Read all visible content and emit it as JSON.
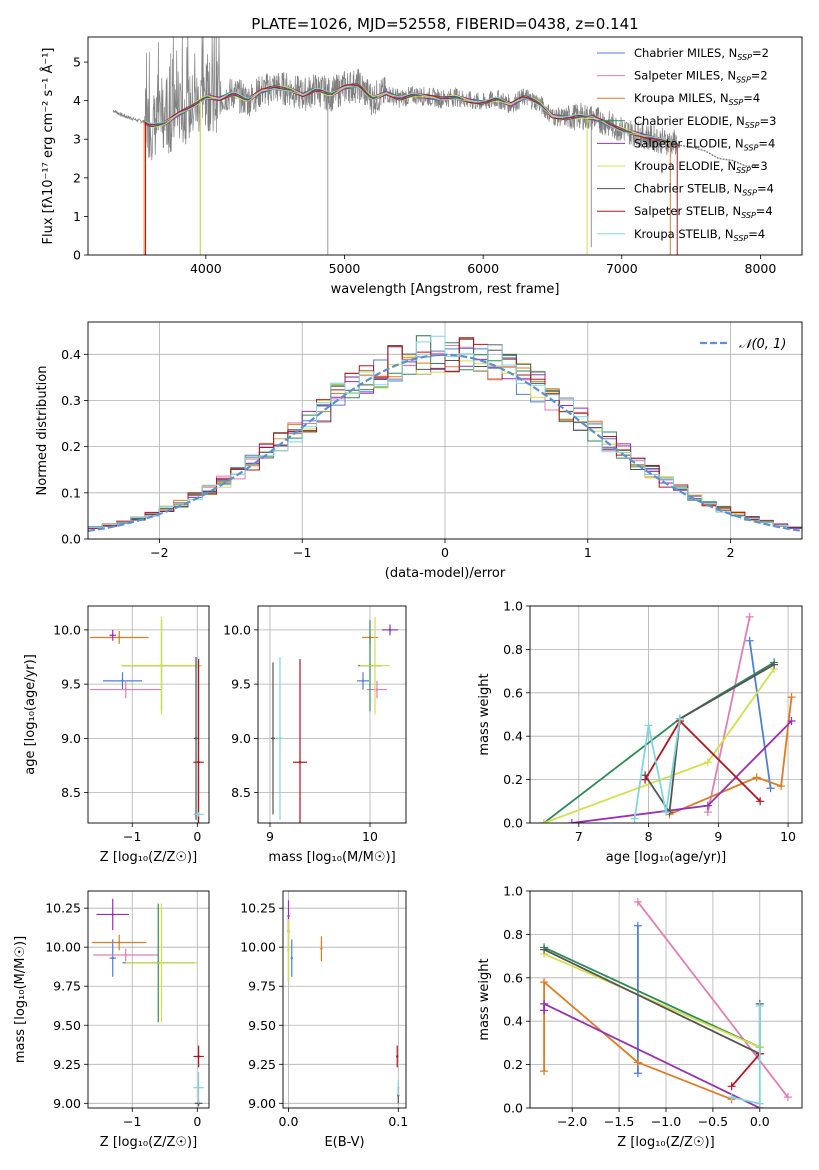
{
  "title": "PLATE=1026, MJD=52558, FIBERID=0438, z=0.141",
  "model_colors": {
    "Chabrier MILES": "#4f7fd6",
    "Salpeter MILES": "#e07fb5",
    "Kroupa MILES": "#e07b20",
    "Chabrier ELODIE": "#2e8b57",
    "Salpeter ELODIE": "#9a2fb5",
    "Kroupa ELODIE": "#d4e04a",
    "Chabrier STELIB": "#555555",
    "Salpeter STELIB": "#b5151f",
    "Kroupa STELIB": "#7fd7dd"
  },
  "legend_spectrum": [
    {
      "label": "Chabrier MILES, N",
      "sub": "SSP",
      "tail": "=2",
      "color": "#4f7fd6"
    },
    {
      "label": "Salpeter MILES, N",
      "sub": "SSP",
      "tail": "=2",
      "color": "#e07fb5"
    },
    {
      "label": "Kroupa MILES, N",
      "sub": "SSP",
      "tail": "=4",
      "color": "#e07b20"
    },
    {
      "label": "Chabrier ELODIE, N",
      "sub": "SSP",
      "tail": "=3",
      "color": "#2e8b57"
    },
    {
      "label": "Salpeter ELODIE, N",
      "sub": "SSP",
      "tail": "=4",
      "color": "#9a2fb5"
    },
    {
      "label": "Kroupa ELODIE, N",
      "sub": "SSP",
      "tail": "=3",
      "color": "#d4e04a"
    },
    {
      "label": "Chabrier STELIB, N",
      "sub": "SSP",
      "tail": "=4",
      "color": "#555555"
    },
    {
      "label": "Salpeter STELIB, N",
      "sub": "SSP",
      "tail": "=4",
      "color": "#b5151f"
    },
    {
      "label": "Kroupa STELIB, N",
      "sub": "SSP",
      "tail": "=4",
      "color": "#7fd7dd"
    }
  ],
  "legend_hist": {
    "label": "𝒩(0, 1)",
    "color": "#5b8fd6"
  },
  "chart_data": [
    {
      "id": "spectrum",
      "type": "line",
      "xlabel": "wavelength [Angstrom, rest frame]",
      "ylabel": "Flux [fλ10⁻¹⁷ erg cm⁻² s⁻¹ Å⁻¹]",
      "xlim": [
        3150,
        8300
      ],
      "ylim": [
        0,
        5.65
      ],
      "xticks": [
        4000,
        5000,
        6000,
        7000,
        8000
      ],
      "yticks": [
        0,
        1,
        2,
        3,
        4,
        5
      ],
      "grid": false,
      "legend": "upper right",
      "continuum": [
        [
          3330,
          3.75
        ],
        [
          3400,
          3.62
        ],
        [
          3500,
          3.5
        ],
        [
          3560,
          3.45
        ],
        [
          3600,
          3.35
        ],
        [
          3700,
          3.4
        ],
        [
          3800,
          3.65
        ],
        [
          3900,
          3.85
        ],
        [
          4000,
          4.1
        ],
        [
          4100,
          4.05
        ],
        [
          4200,
          4.2
        ],
        [
          4300,
          4.0
        ],
        [
          4400,
          4.25
        ],
        [
          4500,
          4.35
        ],
        [
          4600,
          4.3
        ],
        [
          4700,
          4.15
        ],
        [
          4800,
          4.3
        ],
        [
          4900,
          4.15
        ],
        [
          5000,
          4.35
        ],
        [
          5100,
          4.4
        ],
        [
          5200,
          4.05
        ],
        [
          5300,
          4.2
        ],
        [
          5400,
          4.05
        ],
        [
          5500,
          4.15
        ],
        [
          5600,
          4.1
        ],
        [
          5700,
          4.05
        ],
        [
          5800,
          4.1
        ],
        [
          5900,
          4.0
        ],
        [
          6000,
          3.95
        ],
        [
          6100,
          4.05
        ],
        [
          6200,
          3.9
        ],
        [
          6300,
          4.1
        ],
        [
          6400,
          3.95
        ],
        [
          6500,
          3.6
        ],
        [
          6600,
          3.55
        ],
        [
          6700,
          3.6
        ],
        [
          6800,
          3.55
        ],
        [
          6900,
          3.4
        ],
        [
          7000,
          3.25
        ],
        [
          7100,
          3.15
        ],
        [
          7200,
          3.05
        ],
        [
          7300,
          2.95
        ],
        [
          7400,
          2.9
        ]
      ],
      "noisy_tail": [
        [
          7400,
          2.85
        ],
        [
          7500,
          2.8
        ],
        [
          7600,
          2.7
        ],
        [
          7700,
          2.5
        ],
        [
          7800,
          2.45
        ],
        [
          7900,
          2.3
        ],
        [
          7980,
          2.3
        ]
      ]
    },
    {
      "id": "residuals",
      "type": "histogram",
      "xlabel": "(data-model)/error",
      "ylabel": "Normed distribution",
      "xlim": [
        -2.5,
        2.5
      ],
      "ylim": [
        0,
        0.47
      ],
      "xticks": [
        -2,
        -1,
        0,
        1,
        2
      ],
      "yticks": [
        0.0,
        0.1,
        0.2,
        0.3,
        0.4
      ],
      "grid": true,
      "legend": "upper right",
      "bin_width": 0.1,
      "series_count": 9
    },
    {
      "id": "age-vs-Z",
      "type": "errorbar",
      "xlabel": "Z [log₁₀(Z/Z☉)]",
      "ylabel": "age  [log₁₀(age/yr)]",
      "xlim": [
        -1.68,
        0.18
      ],
      "ylim": [
        8.22,
        10.22
      ],
      "xticks": [
        -1,
        0
      ],
      "yticks": [
        8.5,
        9.0,
        9.5,
        10.0
      ],
      "grid": true,
      "points": [
        {
          "model": "Chabrier MILES",
          "x": -1.15,
          "y": 9.53,
          "xerr": 0.3,
          "yerr": 0.08
        },
        {
          "model": "Salpeter MILES",
          "x": -1.1,
          "y": 9.45,
          "xerr": 0.55,
          "yerr": 0.08
        },
        {
          "model": "Kroupa MILES",
          "x": -1.2,
          "y": 9.93,
          "xerr": 0.45,
          "yerr": 0.06
        },
        {
          "model": "Chabrier ELODIE",
          "x": -0.55,
          "y": 9.67,
          "xerr": 0.6,
          "yerr": 0.42
        },
        {
          "model": "Salpeter ELODIE",
          "x": -1.3,
          "y": 9.95,
          "xerr": 0.05,
          "yerr": 0.05
        },
        {
          "model": "Kroupa ELODIE",
          "x": -0.55,
          "y": 9.67,
          "xerr": 0.62,
          "yerr": 0.45
        },
        {
          "model": "Chabrier STELIB",
          "x": -0.02,
          "y": 9.0,
          "xerr": 0.03,
          "yerr": 0.75
        },
        {
          "model": "Salpeter STELIB",
          "x": 0.02,
          "y": 8.78,
          "xerr": 0.08,
          "yerr": 0.95
        },
        {
          "model": "Kroupa STELIB",
          "x": 0.02,
          "y": 8.3,
          "xerr": 0.08,
          "yerr": 0.02
        }
      ]
    },
    {
      "id": "age-vs-mass",
      "type": "errorbar",
      "xlabel": "mass [log₁₀(M/M☉)]",
      "ylabel": "",
      "xlim": [
        8.88,
        10.36
      ],
      "ylim": [
        8.22,
        10.22
      ],
      "xticks": [
        9,
        10
      ],
      "yticks": [
        8.5,
        9.0,
        9.5,
        10.0
      ],
      "grid": true,
      "points": [
        {
          "model": "Chabrier MILES",
          "x": 9.93,
          "y": 9.53,
          "xerr": 0.06,
          "yerr": 0.08
        },
        {
          "model": "Salpeter MILES",
          "x": 10.07,
          "y": 9.45,
          "xerr": 0.1,
          "yerr": 0.08
        },
        {
          "model": "Kroupa MILES",
          "x": 10.0,
          "y": 9.93,
          "xerr": 0.08,
          "yerr": 0.06
        },
        {
          "model": "Chabrier ELODIE",
          "x": 10.0,
          "y": 9.67,
          "xerr": 0.12,
          "yerr": 0.42
        },
        {
          "model": "Salpeter ELODIE",
          "x": 10.2,
          "y": 10.0,
          "xerr": 0.08,
          "yerr": 0.05
        },
        {
          "model": "Kroupa ELODIE",
          "x": 10.05,
          "y": 9.67,
          "xerr": 0.15,
          "yerr": 0.45
        },
        {
          "model": "Chabrier STELIB",
          "x": 9.03,
          "y": 9.0,
          "xerr": 0.02,
          "yerr": 0.7
        },
        {
          "model": "Salpeter STELIB",
          "x": 9.3,
          "y": 8.78,
          "xerr": 0.07,
          "yerr": 0.95
        },
        {
          "model": "Kroupa STELIB",
          "x": 9.1,
          "y": 9.0,
          "xerr": 0.03,
          "yerr": 0.75
        }
      ]
    },
    {
      "id": "mass-weight-vs-age",
      "type": "line",
      "xlabel": "age  [log₁₀(age/yr)]",
      "ylabel": "mass weight",
      "xlim": [
        6.3,
        10.2
      ],
      "ylim": [
        0,
        1.0
      ],
      "xticks": [
        7,
        8,
        9,
        10
      ],
      "yticks": [
        0.0,
        0.2,
        0.4,
        0.6,
        0.8,
        1.0
      ],
      "grid": true,
      "series": [
        {
          "model": "Chabrier MILES",
          "points": [
            [
              9.45,
              0.84
            ],
            [
              9.75,
              0.16
            ]
          ]
        },
        {
          "model": "Salpeter MILES",
          "points": [
            [
              8.85,
              0.05
            ],
            [
              9.45,
              0.95
            ]
          ]
        },
        {
          "model": "Kroupa MILES",
          "points": [
            [
              8.3,
              0.04
            ],
            [
              9.55,
              0.21
            ],
            [
              9.9,
              0.17
            ],
            [
              10.05,
              0.58
            ]
          ]
        },
        {
          "model": "Chabrier ELODIE",
          "points": [
            [
              6.5,
              0.0
            ],
            [
              8.45,
              0.48
            ],
            [
              9.8,
              0.74
            ]
          ]
        },
        {
          "model": "Salpeter ELODIE",
          "points": [
            [
              6.9,
              0.0
            ],
            [
              8.85,
              0.08
            ],
            [
              10.05,
              0.47
            ]
          ]
        },
        {
          "model": "Kroupa ELODIE",
          "points": [
            [
              6.5,
              0.0
            ],
            [
              8.85,
              0.28
            ],
            [
              9.8,
              0.71
            ]
          ]
        },
        {
          "model": "Chabrier STELIB",
          "points": [
            [
              7.95,
              0.22
            ],
            [
              8.3,
              0.05
            ],
            [
              8.45,
              0.48
            ],
            [
              9.8,
              0.73
            ]
          ]
        },
        {
          "model": "Salpeter STELIB",
          "points": [
            [
              7.95,
              0.2
            ],
            [
              8.45,
              0.47
            ],
            [
              9.6,
              0.1
            ]
          ]
        },
        {
          "model": "Kroupa STELIB",
          "points": [
            [
              7.8,
              0.02
            ],
            [
              8.0,
              0.45
            ],
            [
              8.25,
              0.05
            ],
            [
              8.45,
              0.48
            ]
          ]
        }
      ]
    },
    {
      "id": "mass-vs-Z",
      "type": "errorbar",
      "xlabel": "Z [log₁₀(Z/Z☉)]",
      "ylabel": "mass [log₁₀(M/M☉)]",
      "xlim": [
        -1.68,
        0.18
      ],
      "ylim": [
        8.97,
        10.36
      ],
      "xticks": [
        -1,
        0
      ],
      "yticks": [
        9.0,
        9.25,
        9.5,
        9.75,
        10.0,
        10.25
      ],
      "grid": true,
      "points": [
        {
          "model": "Chabrier MILES",
          "x": -1.3,
          "y": 9.93,
          "xerr": 0.05,
          "yerr": 0.12
        },
        {
          "model": "Salpeter MILES",
          "x": -1.1,
          "y": 9.95,
          "xerr": 0.5,
          "yerr": 0.04
        },
        {
          "model": "Kroupa MILES",
          "x": -1.2,
          "y": 10.03,
          "xerr": 0.42,
          "yerr": 0.05
        },
        {
          "model": "Chabrier ELODIE",
          "x": -0.6,
          "y": 9.9,
          "xerr": 0.55,
          "yerr": 0.38
        },
        {
          "model": "Salpeter ELODIE",
          "x": -1.3,
          "y": 10.21,
          "xerr": 0.25,
          "yerr": 0.1
        },
        {
          "model": "Kroupa ELODIE",
          "x": -0.55,
          "y": 9.9,
          "xerr": 0.55,
          "yerr": 0.38
        },
        {
          "model": "Chabrier STELIB",
          "x": 0.02,
          "y": 9.0,
          "xerr": 0.06,
          "yerr": 0.02
        },
        {
          "model": "Salpeter STELIB",
          "x": 0.02,
          "y": 9.3,
          "xerr": 0.08,
          "yerr": 0.07
        },
        {
          "model": "Kroupa STELIB",
          "x": 0.02,
          "y": 9.1,
          "xerr": 0.08,
          "yerr": 0.1
        }
      ]
    },
    {
      "id": "mass-vs-ebv",
      "type": "errorbar",
      "xlabel": "E(B-V)",
      "ylabel": "",
      "xlim": [
        -0.005,
        0.107
      ],
      "ylim": [
        8.97,
        10.36
      ],
      "xticks": [
        0.0,
        0.1
      ],
      "yticks": [
        9.0,
        9.25,
        9.5,
        9.75,
        10.0,
        10.25
      ],
      "grid": true,
      "points": [
        {
          "model": "Chabrier MILES",
          "x": 0.003,
          "y": 9.93,
          "xerr": 0.0,
          "yerr": 0.12
        },
        {
          "model": "Salpeter MILES",
          "x": 0.0,
          "y": 10.1,
          "xerr": 0.0,
          "yerr": 0.1
        },
        {
          "model": "Kroupa MILES",
          "x": 0.03,
          "y": 9.99,
          "xerr": 0.0,
          "yerr": 0.08
        },
        {
          "model": "Chabrier ELODIE",
          "x": 0.0,
          "y": 9.98,
          "xerr": 0.0,
          "yerr": 0.2
        },
        {
          "model": "Salpeter ELODIE",
          "x": 0.0,
          "y": 10.2,
          "xerr": 0.0,
          "yerr": 0.1
        },
        {
          "model": "Kroupa ELODIE",
          "x": 0.0,
          "y": 9.98,
          "xerr": 0.0,
          "yerr": 0.2
        },
        {
          "model": "Chabrier STELIB",
          "x": 0.1,
          "y": 9.05,
          "xerr": 0.0,
          "yerr": 0.05
        },
        {
          "model": "Salpeter STELIB",
          "x": 0.099,
          "y": 9.3,
          "xerr": 0.0,
          "yerr": 0.07
        },
        {
          "model": "Kroupa STELIB",
          "x": 0.1,
          "y": 9.1,
          "xerr": 0.0,
          "yerr": 0.05
        }
      ]
    },
    {
      "id": "mass-weight-vs-Z",
      "type": "line",
      "xlabel": "Z [log₁₀(Z/Z☉)]",
      "ylabel": "mass weight",
      "xlim": [
        -2.45,
        0.45
      ],
      "ylim": [
        0,
        1.0
      ],
      "xticks": [
        -2.0,
        -1.5,
        -1.0,
        -0.5,
        0.0
      ],
      "yticks": [
        0.0,
        0.2,
        0.4,
        0.6,
        0.8,
        1.0
      ],
      "grid": true,
      "series": [
        {
          "model": "Chabrier MILES",
          "points": [
            [
              -1.3,
              0.84
            ],
            [
              -1.3,
              0.16
            ]
          ]
        },
        {
          "model": "Salpeter MILES",
          "points": [
            [
              -1.3,
              0.95
            ],
            [
              0.3,
              0.05
            ]
          ]
        },
        {
          "model": "Kroupa MILES",
          "points": [
            [
              -2.3,
              0.17
            ],
            [
              -2.3,
              0.58
            ],
            [
              -1.3,
              0.21
            ],
            [
              -0.3,
              0.04
            ]
          ]
        },
        {
          "model": "Chabrier ELODIE",
          "points": [
            [
              -2.3,
              0.74
            ],
            [
              0.0,
              0.28
            ]
          ]
        },
        {
          "model": "Salpeter ELODIE",
          "points": [
            [
              -2.3,
              0.45
            ],
            [
              -2.3,
              0.48
            ],
            [
              -0.0,
              0.0
            ]
          ]
        },
        {
          "model": "Kroupa ELODIE",
          "points": [
            [
              -2.3,
              0.71
            ],
            [
              0.0,
              0.28
            ]
          ]
        },
        {
          "model": "Chabrier STELIB",
          "points": [
            [
              -2.3,
              0.73
            ],
            [
              0.0,
              0.25
            ],
            [
              0.0,
              0.48
            ]
          ]
        },
        {
          "model": "Salpeter STELIB",
          "points": [
            [
              -0.3,
              0.1
            ],
            [
              0.0,
              0.25
            ]
          ]
        },
        {
          "model": "Kroupa STELIB",
          "points": [
            [
              -0.3,
              0.05
            ],
            [
              0.0,
              0.02
            ],
            [
              0.0,
              0.47
            ]
          ]
        }
      ]
    }
  ]
}
